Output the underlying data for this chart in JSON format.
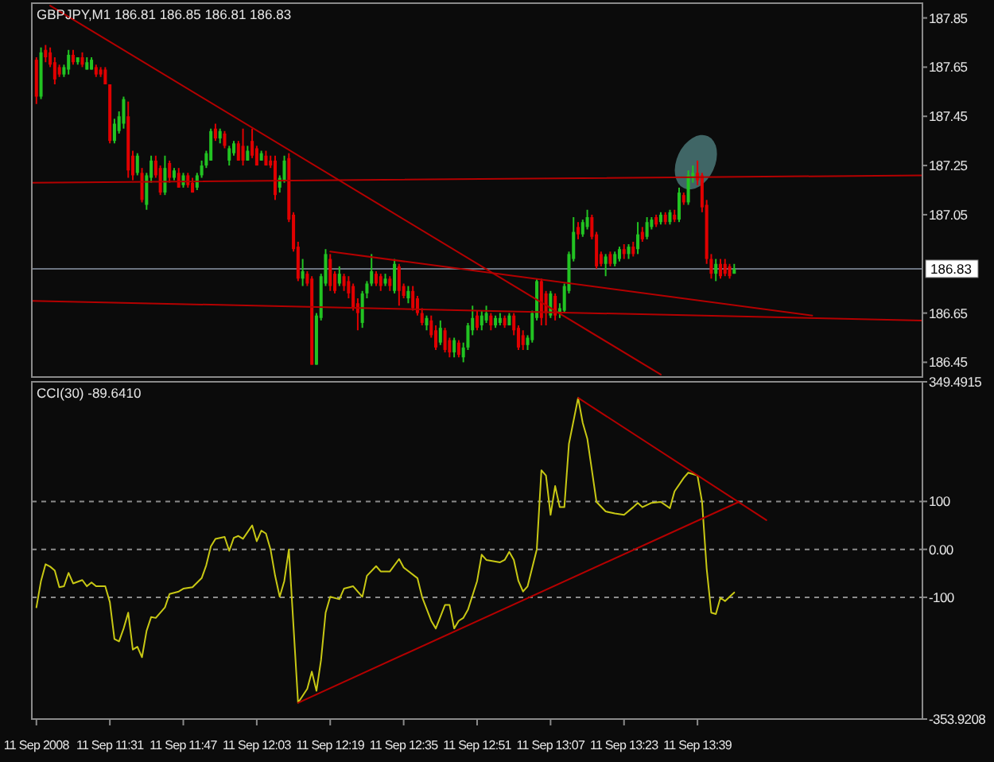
{
  "chart_data": [
    {
      "type": "candlestick",
      "title": "GBPJPY,M1 186.81 186.85 186.81 186.83",
      "x": [
        "2008-09-11T11:15",
        "2008-09-11T11:16",
        "2008-09-11T11:17",
        "2008-09-11T11:18",
        "2008-09-11T11:19",
        "2008-09-11T11:20",
        "2008-09-11T11:21",
        "2008-09-11T11:22",
        "2008-09-11T11:23",
        "2008-09-11T11:24",
        "2008-09-11T11:25",
        "2008-09-11T11:26",
        "2008-09-11T11:27",
        "2008-09-11T11:28",
        "2008-09-11T11:29",
        "2008-09-11T11:30",
        "2008-09-11T11:31",
        "2008-09-11T11:32",
        "2008-09-11T11:33",
        "2008-09-11T11:34",
        "2008-09-11T11:35",
        "2008-09-11T11:36",
        "2008-09-11T11:37",
        "2008-09-11T11:38",
        "2008-09-11T11:39",
        "2008-09-11T11:40",
        "2008-09-11T11:41",
        "2008-09-11T11:42",
        "2008-09-11T11:43",
        "2008-09-11T11:44",
        "2008-09-11T11:45",
        "2008-09-11T11:46",
        "2008-09-11T11:47",
        "2008-09-11T11:48",
        "2008-09-11T11:49",
        "2008-09-11T11:50",
        "2008-09-11T11:51",
        "2008-09-11T11:52",
        "2008-09-11T11:53",
        "2008-09-11T11:54",
        "2008-09-11T11:55",
        "2008-09-11T11:56",
        "2008-09-11T11:57",
        "2008-09-11T11:58",
        "2008-09-11T11:59",
        "2008-09-11T12:00",
        "2008-09-11T12:01",
        "2008-09-11T12:02",
        "2008-09-11T12:03",
        "2008-09-11T12:04",
        "2008-09-11T12:05",
        "2008-09-11T12:06",
        "2008-09-11T12:07",
        "2008-09-11T12:08",
        "2008-09-11T12:09",
        "2008-09-11T12:10",
        "2008-09-11T12:11",
        "2008-09-11T12:12",
        "2008-09-11T12:13",
        "2008-09-11T12:14",
        "2008-09-11T12:15",
        "2008-09-11T12:16",
        "2008-09-11T12:17",
        "2008-09-11T12:18",
        "2008-09-11T12:19",
        "2008-09-11T12:20",
        "2008-09-11T12:21",
        "2008-09-11T12:22",
        "2008-09-11T12:23",
        "2008-09-11T12:24",
        "2008-09-11T12:25",
        "2008-09-11T12:26",
        "2008-09-11T12:27",
        "2008-09-11T12:28",
        "2008-09-11T12:29",
        "2008-09-11T12:30",
        "2008-09-11T12:31",
        "2008-09-11T12:32",
        "2008-09-11T12:33",
        "2008-09-11T12:34",
        "2008-09-11T12:35",
        "2008-09-11T12:36",
        "2008-09-11T12:37",
        "2008-09-11T12:38",
        "2008-09-11T12:39",
        "2008-09-11T12:40",
        "2008-09-11T12:41",
        "2008-09-11T12:42",
        "2008-09-11T12:43",
        "2008-09-11T12:44",
        "2008-09-11T12:45",
        "2008-09-11T12:46",
        "2008-09-11T12:47",
        "2008-09-11T12:48",
        "2008-09-11T12:49",
        "2008-09-11T12:50",
        "2008-09-11T12:51",
        "2008-09-11T12:52",
        "2008-09-11T12:53",
        "2008-09-11T12:54",
        "2008-09-11T12:55",
        "2008-09-11T12:56",
        "2008-09-11T12:57",
        "2008-09-11T12:58",
        "2008-09-11T12:59",
        "2008-09-11T13:00",
        "2008-09-11T13:01",
        "2008-09-11T13:02",
        "2008-09-11T13:03",
        "2008-09-11T13:04",
        "2008-09-11T13:05",
        "2008-09-11T13:06",
        "2008-09-11T13:07",
        "2008-09-11T13:08",
        "2008-09-11T13:09",
        "2008-09-11T13:10",
        "2008-09-11T13:11",
        "2008-09-11T13:12",
        "2008-09-11T13:13",
        "2008-09-11T13:14",
        "2008-09-11T13:15",
        "2008-09-11T13:16",
        "2008-09-11T13:17",
        "2008-09-11T13:18",
        "2008-09-11T13:19",
        "2008-09-11T13:20",
        "2008-09-11T13:21",
        "2008-09-11T13:22",
        "2008-09-11T13:23",
        "2008-09-11T13:24",
        "2008-09-11T13:25",
        "2008-09-11T13:26",
        "2008-09-11T13:27",
        "2008-09-11T13:28",
        "2008-09-11T13:29",
        "2008-09-11T13:30",
        "2008-09-11T13:31",
        "2008-09-11T13:32",
        "2008-09-11T13:33",
        "2008-09-11T13:34",
        "2008-09-11T13:35",
        "2008-09-11T13:36",
        "2008-09-11T13:37",
        "2008-09-11T13:38",
        "2008-09-11T13:39",
        "2008-09-11T13:40",
        "2008-09-11T13:41",
        "2008-09-11T13:42",
        "2008-09-11T13:43",
        "2008-09-11T13:44",
        "2008-09-11T13:45",
        "2008-09-11T13:46",
        "2008-09-11T13:47"
      ],
      "ohlc": [
        [
          187.68,
          187.69,
          187.5,
          187.53
        ],
        [
          187.53,
          187.73,
          187.52,
          187.71
        ],
        [
          187.72,
          187.74,
          187.67,
          187.69
        ],
        [
          187.71,
          187.73,
          187.65,
          187.66
        ],
        [
          187.67,
          187.69,
          187.58,
          187.6
        ],
        [
          187.65,
          187.66,
          187.61,
          187.62
        ],
        [
          187.62,
          187.66,
          187.61,
          187.65
        ],
        [
          187.64,
          187.72,
          187.62,
          187.7
        ],
        [
          187.7,
          187.72,
          187.66,
          187.67
        ],
        [
          187.67,
          187.69,
          187.66,
          187.69
        ],
        [
          187.69,
          187.71,
          187.65,
          187.66
        ],
        [
          187.64,
          187.69,
          187.64,
          187.67
        ],
        [
          187.64,
          187.69,
          187.64,
          187.68
        ],
        [
          187.65,
          187.66,
          187.61,
          187.62
        ],
        [
          187.64,
          187.65,
          187.61,
          187.62
        ],
        [
          187.64,
          187.65,
          187.58,
          187.58
        ],
        [
          187.58,
          187.58,
          187.34,
          187.35
        ],
        [
          187.35,
          187.44,
          187.34,
          187.42
        ],
        [
          187.39,
          187.47,
          187.38,
          187.45
        ],
        [
          187.42,
          187.53,
          187.4,
          187.52
        ],
        [
          187.45,
          187.51,
          187.2,
          187.23
        ],
        [
          187.29,
          187.31,
          187.19,
          187.21
        ],
        [
          187.22,
          187.3,
          187.21,
          187.29
        ],
        [
          187.22,
          187.24,
          187.1,
          187.11
        ],
        [
          187.09,
          187.22,
          187.07,
          187.21
        ],
        [
          187.2,
          187.29,
          187.18,
          187.27
        ],
        [
          187.27,
          187.29,
          187.2,
          187.21
        ],
        [
          187.24,
          187.25,
          187.13,
          187.14
        ],
        [
          187.14,
          187.29,
          187.13,
          187.24
        ],
        [
          187.26,
          187.27,
          187.18,
          187.2
        ],
        [
          187.2,
          187.24,
          187.19,
          187.23
        ],
        [
          187.22,
          187.24,
          187.16,
          187.16
        ],
        [
          187.17,
          187.22,
          187.16,
          187.21
        ],
        [
          187.21,
          187.22,
          187.16,
          187.17
        ],
        [
          187.18,
          187.2,
          187.14,
          187.14
        ],
        [
          187.16,
          187.22,
          187.15,
          187.21
        ],
        [
          187.21,
          187.27,
          187.2,
          187.25
        ],
        [
          187.25,
          187.31,
          187.24,
          187.3
        ],
        [
          187.27,
          187.4,
          187.27,
          187.39
        ],
        [
          187.4,
          187.42,
          187.35,
          187.36
        ],
        [
          187.36,
          187.4,
          187.34,
          187.39
        ],
        [
          187.38,
          187.39,
          187.32,
          187.33
        ],
        [
          187.27,
          187.33,
          187.25,
          187.32
        ],
        [
          187.3,
          187.35,
          187.29,
          187.34
        ],
        [
          187.34,
          187.35,
          187.27,
          187.27
        ],
        [
          187.33,
          187.4,
          187.25,
          187.27
        ],
        [
          187.27,
          187.33,
          187.27,
          187.31
        ],
        [
          187.35,
          187.4,
          187.28,
          187.29
        ],
        [
          187.32,
          187.33,
          187.25,
          187.25
        ],
        [
          187.27,
          187.31,
          187.27,
          187.3
        ],
        [
          187.29,
          187.31,
          187.25,
          187.25
        ],
        [
          187.27,
          187.29,
          187.24,
          187.25
        ],
        [
          187.27,
          187.29,
          187.11,
          187.13
        ],
        [
          187.16,
          187.21,
          187.14,
          187.2
        ],
        [
          187.19,
          187.29,
          187.18,
          187.27
        ],
        [
          187.28,
          187.3,
          187.02,
          187.03
        ],
        [
          187.05,
          187.06,
          186.9,
          186.91
        ],
        [
          186.92,
          186.94,
          186.78,
          186.79
        ],
        [
          186.79,
          186.87,
          186.76,
          186.82
        ],
        [
          186.81,
          186.82,
          186.76,
          186.77
        ],
        [
          186.79,
          186.8,
          186.44,
          186.44
        ],
        [
          186.44,
          186.65,
          186.44,
          186.64
        ],
        [
          186.63,
          186.81,
          186.62,
          186.8
        ],
        [
          186.77,
          186.91,
          186.76,
          186.89
        ],
        [
          186.87,
          186.89,
          186.74,
          186.76
        ],
        [
          186.81,
          186.82,
          186.73,
          186.74
        ],
        [
          186.77,
          186.84,
          186.76,
          186.81
        ],
        [
          186.8,
          186.81,
          186.74,
          186.76
        ],
        [
          186.78,
          186.8,
          186.71,
          186.73
        ],
        [
          186.76,
          186.77,
          186.66,
          186.67
        ],
        [
          186.69,
          186.71,
          186.58,
          186.65
        ],
        [
          186.61,
          186.74,
          186.59,
          186.73
        ],
        [
          186.73,
          186.78,
          186.71,
          186.77
        ],
        [
          186.77,
          186.89,
          186.76,
          186.82
        ],
        [
          186.81,
          186.82,
          186.76,
          186.77
        ],
        [
          186.8,
          186.81,
          186.74,
          186.76
        ],
        [
          186.77,
          186.81,
          186.76,
          186.79
        ],
        [
          186.79,
          186.8,
          186.74,
          186.76
        ],
        [
          186.74,
          186.87,
          186.73,
          186.85
        ],
        [
          186.84,
          186.85,
          186.68,
          186.74
        ],
        [
          186.76,
          186.77,
          186.71,
          186.72
        ],
        [
          186.71,
          186.76,
          186.69,
          186.74
        ],
        [
          186.74,
          186.76,
          186.66,
          186.67
        ],
        [
          186.71,
          186.72,
          186.64,
          186.65
        ],
        [
          186.65,
          186.67,
          186.6,
          186.61
        ],
        [
          186.6,
          186.64,
          186.58,
          186.63
        ],
        [
          186.62,
          186.64,
          186.55,
          186.56
        ],
        [
          186.58,
          186.6,
          186.5,
          186.51
        ],
        [
          186.53,
          186.62,
          186.52,
          186.59
        ],
        [
          186.58,
          186.59,
          186.49,
          186.5
        ],
        [
          186.54,
          186.55,
          186.47,
          186.49
        ],
        [
          186.49,
          186.55,
          186.47,
          186.54
        ],
        [
          186.53,
          186.54,
          186.47,
          186.48
        ],
        [
          186.47,
          186.53,
          186.45,
          186.51
        ],
        [
          186.51,
          186.61,
          186.5,
          186.6
        ],
        [
          186.58,
          186.68,
          186.56,
          186.63
        ],
        [
          186.64,
          186.66,
          186.58,
          186.59
        ],
        [
          186.6,
          186.66,
          186.58,
          186.64
        ],
        [
          186.62,
          186.68,
          186.61,
          186.65
        ],
        [
          186.64,
          186.65,
          186.58,
          186.6
        ],
        [
          186.6,
          186.64,
          186.59,
          186.63
        ],
        [
          186.61,
          186.65,
          186.6,
          186.63
        ],
        [
          186.63,
          186.64,
          186.59,
          186.6
        ],
        [
          186.6,
          186.65,
          186.6,
          186.64
        ],
        [
          186.64,
          186.65,
          186.56,
          186.58
        ],
        [
          186.59,
          186.6,
          186.5,
          186.51
        ],
        [
          186.56,
          186.58,
          186.5,
          186.52
        ],
        [
          186.52,
          186.56,
          186.5,
          186.55
        ],
        [
          186.54,
          186.66,
          186.53,
          186.65
        ],
        [
          186.63,
          186.79,
          186.62,
          186.78
        ],
        [
          186.78,
          186.79,
          186.6,
          186.63
        ],
        [
          186.73,
          186.74,
          186.6,
          186.65
        ],
        [
          186.64,
          186.74,
          186.63,
          186.73
        ],
        [
          186.72,
          186.73,
          186.62,
          186.64
        ],
        [
          186.65,
          186.69,
          186.63,
          186.67
        ],
        [
          186.66,
          186.77,
          186.65,
          186.76
        ],
        [
          186.74,
          186.9,
          186.73,
          186.89
        ],
        [
          186.87,
          187.04,
          186.86,
          186.98
        ],
        [
          187.0,
          187.02,
          186.95,
          186.97
        ],
        [
          186.97,
          187.03,
          186.96,
          187.02
        ],
        [
          187.0,
          187.07,
          186.99,
          187.04
        ],
        [
          187.04,
          187.05,
          186.95,
          186.96
        ],
        [
          186.97,
          186.98,
          186.83,
          186.84
        ],
        [
          186.89,
          186.9,
          186.84,
          186.85
        ],
        [
          186.85,
          186.89,
          186.8,
          186.88
        ],
        [
          186.89,
          186.9,
          186.84,
          186.85
        ],
        [
          186.85,
          186.9,
          186.84,
          186.89
        ],
        [
          186.87,
          186.92,
          186.86,
          186.91
        ],
        [
          186.91,
          186.93,
          186.87,
          186.89
        ],
        [
          186.89,
          186.93,
          186.87,
          186.92
        ],
        [
          186.92,
          186.94,
          186.88,
          186.89
        ],
        [
          186.91,
          187.02,
          186.89,
          186.97
        ],
        [
          186.98,
          187.0,
          186.94,
          186.95
        ],
        [
          186.96,
          187.04,
          186.95,
          187.02
        ],
        [
          187.0,
          187.04,
          186.99,
          187.03
        ],
        [
          187.04,
          187.05,
          187.0,
          187.01
        ],
        [
          187.02,
          187.06,
          187.01,
          187.05
        ],
        [
          187.05,
          187.06,
          187.01,
          187.02
        ],
        [
          187.02,
          187.07,
          187.01,
          187.06
        ],
        [
          187.05,
          187.07,
          187.02,
          187.03
        ],
        [
          187.03,
          187.16,
          187.02,
          187.14
        ],
        [
          187.13,
          187.14,
          187.09,
          187.1
        ],
        [
          187.1,
          187.23,
          187.09,
          187.21
        ],
        [
          187.2,
          187.25,
          187.18,
          187.22
        ],
        [
          187.22,
          187.27,
          187.17,
          187.19
        ],
        [
          187.21,
          187.22,
          187.06,
          187.08
        ],
        [
          187.09,
          187.11,
          186.85,
          186.87
        ],
        [
          186.87,
          186.89,
          186.79,
          186.81
        ],
        [
          186.81,
          186.87,
          186.78,
          186.85
        ],
        [
          186.85,
          186.87,
          186.79,
          186.8
        ],
        [
          186.85,
          186.87,
          186.8,
          186.81
        ],
        [
          186.84,
          186.85,
          186.79,
          186.8
        ],
        [
          186.81,
          186.85,
          186.81,
          186.83
        ]
      ],
      "colors": [
        "#e00000",
        "#22c322",
        "#e00000",
        "#e00000",
        "#e00000",
        "#e00000",
        "#22c322",
        "#22c322",
        "#e00000",
        "#22c322",
        "#e00000",
        "#22c322",
        "#22c322",
        "#e00000",
        "#e00000",
        "#e00000",
        "#e00000",
        "#22c322",
        "#22c322",
        "#22c322",
        "#e00000",
        "#e00000",
        "#22c322",
        "#e00000",
        "#22c322",
        "#22c322",
        "#e00000",
        "#e00000",
        "#22c322",
        "#e00000",
        "#22c322",
        "#e00000",
        "#22c322",
        "#e00000",
        "#e00000",
        "#22c322",
        "#22c322",
        "#22c322",
        "#22c322",
        "#e00000",
        "#22c322",
        "#e00000",
        "#22c322",
        "#22c322",
        "#e00000",
        "#e00000",
        "#22c322",
        "#e00000",
        "#e00000",
        "#22c322",
        "#e00000",
        "#e00000",
        "#e00000",
        "#22c322",
        "#22c322",
        "#e00000",
        "#e00000",
        "#e00000",
        "#22c322",
        "#e00000",
        "#e00000",
        "#22c322",
        "#22c322",
        "#22c322",
        "#e00000",
        "#e00000",
        "#22c322",
        "#e00000",
        "#e00000",
        "#e00000",
        "#e00000",
        "#22c322",
        "#22c322",
        "#22c322",
        "#e00000",
        "#e00000",
        "#22c322",
        "#e00000",
        "#22c322",
        "#e00000",
        "#e00000",
        "#22c322",
        "#e00000",
        "#e00000",
        "#e00000",
        "#22c322",
        "#e00000",
        "#e00000",
        "#22c322",
        "#e00000",
        "#e00000",
        "#22c322",
        "#e00000",
        "#22c322",
        "#22c322",
        "#22c322",
        "#e00000",
        "#22c322",
        "#22c322",
        "#e00000",
        "#22c322",
        "#22c322",
        "#e00000",
        "#22c322",
        "#e00000",
        "#e00000",
        "#e00000",
        "#22c322",
        "#22c322",
        "#22c322",
        "#e00000",
        "#e00000",
        "#22c322",
        "#e00000",
        "#22c322",
        "#22c322",
        "#22c322",
        "#22c322",
        "#e00000",
        "#22c322",
        "#22c322",
        "#e00000",
        "#e00000",
        "#e00000",
        "#22c322",
        "#e00000",
        "#22c322",
        "#22c322",
        "#e00000",
        "#22c322",
        "#e00000",
        "#22c322",
        "#e00000",
        "#22c322",
        "#22c322",
        "#e00000",
        "#22c322",
        "#e00000",
        "#22c322",
        "#e00000",
        "#22c322",
        "#e00000",
        "#22c322",
        "#22c322",
        "#e00000",
        "#e00000",
        "#e00000",
        "#e00000",
        "#22c322",
        "#e00000",
        "#e00000",
        "#e00000",
        "#22c322"
      ],
      "series": [
        {
          "type": "line",
          "color": "#b40000",
          "x": [
            "2008-09-11T11:14",
            "2008-09-11T14:28"
          ],
          "values": [
            187.18,
            187.21
          ]
        },
        {
          "type": "line",
          "color": "#b40000",
          "x": [
            "2008-09-11T11:14",
            "2008-09-11T14:28"
          ],
          "values": [
            186.7,
            186.62
          ]
        },
        {
          "type": "line",
          "color": "#b40000",
          "x": [
            "2008-09-11T11:18",
            "2008-09-11T13:31"
          ],
          "values": [
            187.9,
            186.4
          ]
        },
        {
          "type": "line",
          "color": "#b40000",
          "x": [
            "2008-09-11T12:19",
            "2008-09-11T14:04"
          ],
          "values": [
            186.9,
            186.64
          ]
        }
      ],
      "xlim": [
        "2008-09-11T11:14",
        "2008-09-11T14:28"
      ],
      "ylim": [
        186.39,
        187.91
      ],
      "yticks": [
        187.85,
        187.65,
        187.45,
        187.25,
        187.05,
        186.65,
        186.45
      ],
      "ref_lines": [
        {
          "axis": "y",
          "value": 186.83,
          "label": "186.83",
          "color": "#6c7480"
        }
      ],
      "tick_labels": "y",
      "marker": "none"
    },
    {
      "type": "line",
      "title": "CCI(30) -89.6410",
      "series": [
        {
          "color": "#c8c814",
          "x": [
            "2008-09-11T11:15",
            "2008-09-11T11:16",
            "2008-09-11T11:17",
            "2008-09-11T11:18",
            "2008-09-11T11:19",
            "2008-09-11T11:20",
            "2008-09-11T11:21",
            "2008-09-11T11:22",
            "2008-09-11T11:23",
            "2008-09-11T11:25",
            "2008-09-11T11:26",
            "2008-09-11T11:27",
            "2008-09-11T11:28",
            "2008-09-11T11:30",
            "2008-09-11T11:31",
            "2008-09-11T11:32",
            "2008-09-11T11:33",
            "2008-09-11T11:34",
            "2008-09-11T11:35",
            "2008-09-11T11:36",
            "2008-09-11T11:37",
            "2008-09-11T11:38",
            "2008-09-11T11:39",
            "2008-09-11T11:40",
            "2008-09-11T11:41",
            "2008-09-11T11:43",
            "2008-09-11T11:44",
            "2008-09-11T11:46",
            "2008-09-11T11:47",
            "2008-09-11T11:49",
            "2008-09-11T11:51",
            "2008-09-11T11:52",
            "2008-09-11T11:53",
            "2008-09-11T11:54",
            "2008-09-11T11:56",
            "2008-09-11T11:57",
            "2008-09-11T11:58",
            "2008-09-11T11:59",
            "2008-09-11T12:00",
            "2008-09-11T12:02",
            "2008-09-11T12:03",
            "2008-09-11T12:04",
            "2008-09-11T12:05",
            "2008-09-11T12:06",
            "2008-09-11T12:07",
            "2008-09-11T12:08",
            "2008-09-11T12:09",
            "2008-09-11T12:10",
            "2008-09-11T12:11",
            "2008-09-11T12:12",
            "2008-09-11T12:14",
            "2008-09-11T12:15",
            "2008-09-11T12:16",
            "2008-09-11T12:17",
            "2008-09-11T12:18",
            "2008-09-11T12:19",
            "2008-09-11T12:21",
            "2008-09-11T12:22",
            "2008-09-11T12:24",
            "2008-09-11T12:26",
            "2008-09-11T12:27",
            "2008-09-11T12:29",
            "2008-09-11T12:30",
            "2008-09-11T12:32",
            "2008-09-11T12:34",
            "2008-09-11T12:35",
            "2008-09-11T12:38",
            "2008-09-11T12:39",
            "2008-09-11T12:41",
            "2008-09-11T12:42",
            "2008-09-11T12:44",
            "2008-09-11T12:45",
            "2008-09-11T12:46",
            "2008-09-11T12:47",
            "2008-09-11T12:48",
            "2008-09-11T12:49",
            "2008-09-11T12:51",
            "2008-09-11T12:52",
            "2008-09-11T12:53",
            "2008-09-11T12:56",
            "2008-09-11T12:57",
            "2008-09-11T12:58",
            "2008-09-11T12:59",
            "2008-09-11T13:00",
            "2008-09-11T13:01",
            "2008-09-11T13:02",
            "2008-09-11T13:04",
            "2008-09-11T13:05",
            "2008-09-11T13:06",
            "2008-09-11T13:07",
            "2008-09-11T13:08",
            "2008-09-11T13:09",
            "2008-09-11T13:10",
            "2008-09-11T13:11",
            "2008-09-11T13:13",
            "2008-09-11T13:14",
            "2008-09-11T13:15",
            "2008-09-11T13:16",
            "2008-09-11T13:17",
            "2008-09-11T13:19",
            "2008-09-11T13:21",
            "2008-09-11T13:23",
            "2008-09-11T13:25",
            "2008-09-11T13:26",
            "2008-09-11T13:27",
            "2008-09-11T13:29",
            "2008-09-11T13:31",
            "2008-09-11T13:33",
            "2008-09-11T13:34",
            "2008-09-11T13:36",
            "2008-09-11T13:37",
            "2008-09-11T13:39",
            "2008-09-11T13:40",
            "2008-09-11T13:41",
            "2008-09-11T13:42",
            "2008-09-11T13:43",
            "2008-09-11T13:44",
            "2008-09-11T13:45",
            "2008-09-11T13:46",
            "2008-09-11T13:47"
          ],
          "values": [
            -121,
            -66,
            -31,
            -36,
            -44,
            -79,
            -77,
            -49,
            -71,
            -64,
            -77,
            -69,
            -77,
            -77,
            -110,
            -187,
            -192,
            -165,
            -132,
            -209,
            -203,
            -225,
            -170,
            -141,
            -143,
            -121,
            -93,
            -88,
            -82,
            -79,
            -60,
            -33,
            6,
            22,
            26,
            -3,
            24,
            28,
            22,
            50,
            17,
            39,
            33,
            0,
            -55,
            -99,
            -66,
            0,
            -160,
            -320,
            -291,
            -255,
            -295,
            -231,
            -132,
            -99,
            -104,
            -82,
            -77,
            -99,
            -55,
            -35,
            -46,
            -46,
            -20,
            -38,
            -60,
            -99,
            -149,
            -165,
            -116,
            -116,
            -165,
            -149,
            -143,
            -126,
            -66,
            -11,
            -22,
            -27,
            -22,
            -5,
            -22,
            -66,
            -88,
            -77,
            0,
            165,
            154,
            72,
            132,
            88,
            88,
            220,
            316,
            264,
            231,
            165,
            99,
            79,
            75,
            72,
            88,
            97,
            88,
            97,
            99,
            86,
            121,
            149,
            160,
            154,
            99,
            -40,
            -132,
            -135,
            -101,
            -108,
            -99,
            -90
          ]
        },
        {
          "color": "#b40000",
          "x": [
            "2008-09-11T12:12",
            "2008-09-11T13:48"
          ],
          "values": [
            -320,
            99
          ]
        },
        {
          "color": "#b40000",
          "x": [
            "2008-09-11T13:13",
            "2008-09-11T13:54"
          ],
          "values": [
            316,
            61
          ]
        }
      ],
      "xlim": [
        "2008-09-11T11:14",
        "2008-09-11T14:28"
      ],
      "xticks": [
        {
          "value": "2008-09-11T11:15",
          "label": "11 Sep 2008"
        },
        {
          "value": "2008-09-11T11:31",
          "label": "11 Sep 11:31"
        },
        {
          "value": "2008-09-11T11:47",
          "label": "11 Sep 11:47"
        },
        {
          "value": "2008-09-11T12:03",
          "label": "11 Sep 12:03"
        },
        {
          "value": "2008-09-11T12:19",
          "label": "11 Sep 12:19"
        },
        {
          "value": "2008-09-11T12:35",
          "label": "11 Sep 12:35"
        },
        {
          "value": "2008-09-11T12:51",
          "label": "11 Sep 12:51"
        },
        {
          "value": "2008-09-11T13:07",
          "label": "11 Sep 13:07"
        },
        {
          "value": "2008-09-11T13:23",
          "label": "11 Sep 13:23"
        },
        {
          "value": "2008-09-11T13:39",
          "label": "11 Sep 13:39"
        }
      ],
      "ylim": [
        -353.9208,
        349.4915
      ],
      "yticks": [
        349.4915,
        100,
        {
          "value": 0,
          "label": "0.00"
        },
        -100,
        -353.9208
      ],
      "ref_lines": [
        {
          "axis": "y",
          "value": 100,
          "color": "#8c8c8c",
          "line_style": "dashed"
        },
        {
          "axis": "y",
          "value": 0,
          "color": "#8c8c8c",
          "line_style": "dashed"
        },
        {
          "axis": "y",
          "value": -100,
          "color": "#8c8c8c",
          "line_style": "dashed"
        }
      ],
      "marker": "none"
    }
  ]
}
